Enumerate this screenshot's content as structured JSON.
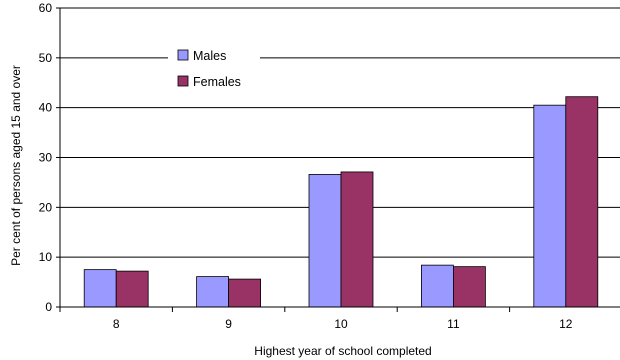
{
  "chart_data": {
    "type": "bar",
    "categories": [
      "8",
      "9",
      "10",
      "11",
      "12"
    ],
    "series": [
      {
        "name": "Males",
        "values": [
          7.5,
          6.1,
          26.6,
          8.4,
          40.5
        ],
        "color": "#9999ff"
      },
      {
        "name": "Females",
        "values": [
          7.2,
          5.6,
          27.1,
          8.1,
          42.2
        ],
        "color": "#993366"
      }
    ],
    "xlabel": "Highest year of school completed",
    "ylabel": "Per cent of persons aged 15 and over",
    "ylim": [
      0,
      60
    ],
    "yticks": [
      0,
      10,
      20,
      30,
      40,
      50,
      60
    ],
    "grid": true,
    "legend": "upper-left"
  }
}
